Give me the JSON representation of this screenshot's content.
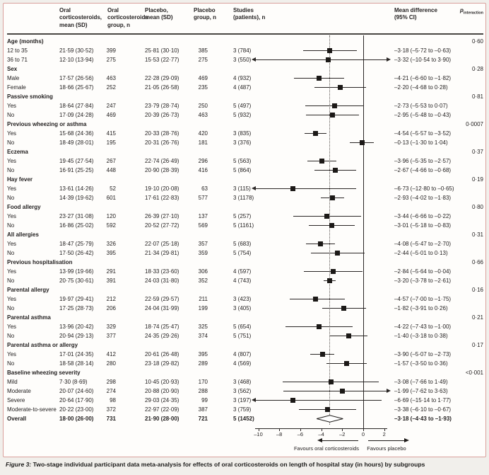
{
  "header": {
    "oral_mean": "Oral corticosteroids, mean (SD)",
    "oral_n": "Oral corticosteroids group, n",
    "placebo_mean": "Placebo, mean (SD)",
    "placebo_n": "Placebo group, n",
    "studies": "Studies (patients), n",
    "mean_difference": "Mean difference (95% CI)",
    "p_label": "p",
    "p_sub": "interaction"
  },
  "rows": [
    {
      "type": "group",
      "label": "Age (months)",
      "p": "0·60"
    },
    {
      "type": "data",
      "label": "12 to 35",
      "oral_mean": "21·59 (30·52)",
      "oral_n": "399",
      "placebo_mean": "25·81 (30·10)",
      "placebo_n": "385",
      "studies": "3 (784)",
      "md": "–3·18 (–5·72 to –0·63)"
    },
    {
      "type": "data",
      "label": "36 to 71",
      "oral_mean": "12·10 (13·94)",
      "oral_n": "275",
      "placebo_mean": "15·53 (22·77)",
      "placebo_n": "275",
      "studies": "3 (550)",
      "md": "–3·32 (–10·54 to 3·90)"
    },
    {
      "type": "group",
      "label": "Sex",
      "p": "0·28"
    },
    {
      "type": "data",
      "label": "Male",
      "oral_mean": "17·57 (26·56)",
      "oral_n": "463",
      "placebo_mean": "22·28 (29·09)",
      "placebo_n": "469",
      "studies": "4 (932)",
      "md": "–4·21 (–6·60 to –1·82)"
    },
    {
      "type": "data",
      "label": "Female",
      "oral_mean": "18·66 (25·67)",
      "oral_n": "252",
      "placebo_mean": "21·05 (26·58)",
      "placebo_n": "235",
      "studies": "4 (487)",
      "md": "–2·20 (–4·68 to 0·28)"
    },
    {
      "type": "group",
      "label": "Passive smoking",
      "p": "0·81"
    },
    {
      "type": "data",
      "label": "Yes",
      "oral_mean": "18·64 (27·84)",
      "oral_n": "247",
      "placebo_mean": "23·79 (28·74)",
      "placebo_n": "250",
      "studies": "5 (497)",
      "md": "–2·73 (–5·53 to 0·07)"
    },
    {
      "type": "data",
      "label": "No",
      "oral_mean": "17·09 (24·28)",
      "oral_n": "469",
      "placebo_mean": "20·39 (26·73)",
      "placebo_n": "463",
      "studies": "5 (932)",
      "md": "–2·95 (–5·48 to –0·43)"
    },
    {
      "type": "group",
      "label": "Previous wheezing or asthma",
      "p": "0·0007"
    },
    {
      "type": "data",
      "label": "Yes",
      "oral_mean": "15·68 (24·36)",
      "oral_n": "415",
      "placebo_mean": "20·33 (28·76)",
      "placebo_n": "420",
      "studies": "3 (835)",
      "md": "–4·54 (–5·57 to –3·52)"
    },
    {
      "type": "data",
      "label": "No",
      "oral_mean": "18·49 (28·01)",
      "oral_n": "195",
      "placebo_mean": "20·31 (26·76)",
      "placebo_n": "181",
      "studies": "3 (376)",
      "md": "–0·13 (–1·30 to 1·04)"
    },
    {
      "type": "group",
      "label": "Eczema",
      "p": "0·37"
    },
    {
      "type": "data",
      "label": "Yes",
      "oral_mean": "19·45 (27·54)",
      "oral_n": "267",
      "placebo_mean": "22·74 (26·49)",
      "placebo_n": "296",
      "studies": "5 (563)",
      "md": "–3·96 (–5·35 to –2·57)"
    },
    {
      "type": "data",
      "label": "No",
      "oral_mean": "16·91 (25·25)",
      "oral_n": "448",
      "placebo_mean": "20·90 (28·39)",
      "placebo_n": "416",
      "studies": "5 (864)",
      "md": "–2·67 (–4·66 to –0·68)"
    },
    {
      "type": "group",
      "label": "Hay fever",
      "p": "0·19"
    },
    {
      "type": "data",
      "label": "Yes",
      "oral_mean": "13·61 (14·26)",
      "oral_n": "52",
      "placebo_mean": "19·10 (20·08)",
      "placebo_n": "63",
      "studies": "3 (115)",
      "md": "–6·73 (–12·80 to –0·65)"
    },
    {
      "type": "data",
      "label": "No",
      "oral_mean": "14·39 (19·62)",
      "oral_n": "601",
      "placebo_mean": "17·61 (22·83)",
      "placebo_n": "577",
      "studies": "3 (1178)",
      "md": "–2·93 (–4·02 to –1·83)"
    },
    {
      "type": "group",
      "label": "Food allergy",
      "p": "0·80"
    },
    {
      "type": "data",
      "label": "Yes",
      "oral_mean": "23·27 (31·08)",
      "oral_n": "120",
      "placebo_mean": "26·39 (27·10)",
      "placebo_n": "137",
      "studies": "5 (257)",
      "md": "–3·44 (–6·66 to –0·22)"
    },
    {
      "type": "data",
      "label": "No",
      "oral_mean": "16·86 (25·02)",
      "oral_n": "592",
      "placebo_mean": "20·52 (27·72)",
      "placebo_n": "569",
      "studies": "5 (1161)",
      "md": "–3·01 (–5·18 to –0·83)"
    },
    {
      "type": "group",
      "label": "All allergies",
      "p": "0·31"
    },
    {
      "type": "data",
      "label": "Yes",
      "oral_mean": "18·47 (25·79)",
      "oral_n": "326",
      "placebo_mean": "22·07 (25·18)",
      "placebo_n": "357",
      "studies": "5 (683)",
      "md": "–4·08 (–5·47 to –2·70)"
    },
    {
      "type": "data",
      "label": "No",
      "oral_mean": "17·50 (26·42)",
      "oral_n": "395",
      "placebo_mean": "21·34 (29·81)",
      "placebo_n": "359",
      "studies": "5 (754)",
      "md": "–2·44 (–5·01 to 0·13)"
    },
    {
      "type": "group",
      "label": "Previous hospitalisation",
      "p": "0·66"
    },
    {
      "type": "data",
      "label": "Yes",
      "oral_mean": "13·99 (19·66)",
      "oral_n": "291",
      "placebo_mean": "18·33 (23·60)",
      "placebo_n": "306",
      "studies": "4 (597)",
      "md": "–2·84 (–5·64 to –0·04)"
    },
    {
      "type": "data",
      "label": "No",
      "oral_mean": "20·75 (30·61)",
      "oral_n": "391",
      "placebo_mean": "24·03 (31·80)",
      "placebo_n": "352",
      "studies": "4 (743)",
      "md": "–3·20 (–3·78 to –2·61)"
    },
    {
      "type": "group",
      "label": "Parental allergy",
      "p": "0·16"
    },
    {
      "type": "data",
      "label": "Yes",
      "oral_mean": "19·97 (29·41)",
      "oral_n": "212",
      "placebo_mean": "22·59 (29·57)",
      "placebo_n": "211",
      "studies": "3 (423)",
      "md": "–4·57 (–7·00 to –1·75)"
    },
    {
      "type": "data",
      "label": "No",
      "oral_mean": "17·25 (28·73)",
      "oral_n": "206",
      "placebo_mean": "24·04 (31·99)",
      "placebo_n": "199",
      "studies": "3 (405)",
      "md": "–1·82 (–3·91 to 0·26)"
    },
    {
      "type": "group",
      "label": "Parental asthma",
      "p": "0·21"
    },
    {
      "type": "data",
      "label": "Yes",
      "oral_mean": "13·96 (20·42)",
      "oral_n": "329",
      "placebo_mean": "18·74 (25·47)",
      "placebo_n": "325",
      "studies": "5 (654)",
      "md": "–4·22 (–7·43 to –1·00)"
    },
    {
      "type": "data",
      "label": "No",
      "oral_mean": "20·94 (29·13)",
      "oral_n": "377",
      "placebo_mean": "24·35 (29·26)",
      "placebo_n": "374",
      "studies": "5 (751)",
      "md": "–1·40 (–3·18 to 0·38)"
    },
    {
      "type": "group",
      "label": "Parental asthma or allergy",
      "p": "0·17"
    },
    {
      "type": "data",
      "label": "Yes",
      "oral_mean": "17·01 (24·35)",
      "oral_n": "412",
      "placebo_mean": "20·61 (26·48)",
      "placebo_n": "395",
      "studies": "4 (807)",
      "md": "–3·90 (–5·07 to –2·73)"
    },
    {
      "type": "data",
      "label": "No",
      "oral_mean": "18·58 (28·14)",
      "oral_n": "280",
      "placebo_mean": "23·18 (29·82)",
      "placebo_n": "289",
      "studies": "4 (569)",
      "md": "–1·57 (–3·50 to 0·36)"
    },
    {
      "type": "group",
      "label": "Baseline wheezing severity",
      "p": "<0·001"
    },
    {
      "type": "data",
      "label": "Mild",
      "oral_mean": "7·30 (8·69)",
      "oral_n": "298",
      "placebo_mean": "10·45 (20·93)",
      "placebo_n": "170",
      "studies": "3 (468)",
      "md": "–3·08 (–7·66 to 1·49)"
    },
    {
      "type": "data",
      "label": "Moderate",
      "oral_mean": "20·07 (24·60)",
      "oral_n": "274",
      "placebo_mean": "20·88 (20·90)",
      "placebo_n": "288",
      "studies": "3 (562)",
      "md": "–1·99 (–7·62 to 3·63)"
    },
    {
      "type": "data",
      "label": "Severe",
      "oral_mean": "20·64 (17·90)",
      "oral_n": "98",
      "placebo_mean": "29·03 (24·35)",
      "placebo_n": "99",
      "studies": "3 (197)",
      "md": "–6·69 (–15·14 to 1·77)"
    },
    {
      "type": "data",
      "label": "Moderate-to-severe",
      "oral_mean": "20·22 (23·00)",
      "oral_n": "372",
      "placebo_mean": "22·97 (22·09)",
      "placebo_n": "387",
      "studies": "3 (759)",
      "md": "–3·38 (–6·10 to –0·67)"
    },
    {
      "type": "overall",
      "label": "Overall",
      "oral_mean": "18·00 (26·00)",
      "oral_n": "731",
      "placebo_mean": "21·90 (28·00)",
      "placebo_n": "721",
      "studies": "5 (1452)",
      "md": "–3·18 (–4·43 to –1·93)"
    }
  ],
  "chart_data": {
    "type": "scatter",
    "subtype": "forest-plot",
    "title": "Two-stage individual participant data meta-analysis for effects of oral corticosteroids on length of hospital stay (in hours) by subgroups",
    "xlim": [
      -10,
      2
    ],
    "x_ticks": [
      -10,
      -8,
      -6,
      -4,
      -2,
      0,
      2
    ],
    "reference_line": 0,
    "overall_dotted_line": -3.18,
    "favours_left": "Favours oral corticosteroids",
    "favours_right": "Favours placebo",
    "points": [
      {
        "label": "12 to 35",
        "estimate": -3.18,
        "ci_low": -5.72,
        "ci_high": -0.63
      },
      {
        "label": "36 to 71",
        "estimate": -3.32,
        "ci_low": -10.54,
        "ci_high": 3.9
      },
      {
        "label": "Male",
        "estimate": -4.21,
        "ci_low": -6.6,
        "ci_high": -1.82
      },
      {
        "label": "Female",
        "estimate": -2.2,
        "ci_low": -4.68,
        "ci_high": 0.28
      },
      {
        "label": "Passive smoking Yes",
        "estimate": -2.73,
        "ci_low": -5.53,
        "ci_high": 0.07
      },
      {
        "label": "Passive smoking No",
        "estimate": -2.95,
        "ci_low": -5.48,
        "ci_high": -0.43
      },
      {
        "label": "Previous wheezing or asthma Yes",
        "estimate": -4.54,
        "ci_low": -5.57,
        "ci_high": -3.52
      },
      {
        "label": "Previous wheezing or asthma No",
        "estimate": -0.13,
        "ci_low": -1.3,
        "ci_high": 1.04
      },
      {
        "label": "Eczema Yes",
        "estimate": -3.96,
        "ci_low": -5.35,
        "ci_high": -2.57
      },
      {
        "label": "Eczema No",
        "estimate": -2.67,
        "ci_low": -4.66,
        "ci_high": -0.68
      },
      {
        "label": "Hay fever Yes",
        "estimate": -6.73,
        "ci_low": -12.8,
        "ci_high": -0.65
      },
      {
        "label": "Hay fever No",
        "estimate": -2.93,
        "ci_low": -4.02,
        "ci_high": -1.83
      },
      {
        "label": "Food allergy Yes",
        "estimate": -3.44,
        "ci_low": -6.66,
        "ci_high": -0.22
      },
      {
        "label": "Food allergy No",
        "estimate": -3.01,
        "ci_low": -5.18,
        "ci_high": -0.83
      },
      {
        "label": "All allergies Yes",
        "estimate": -4.08,
        "ci_low": -5.47,
        "ci_high": -2.7
      },
      {
        "label": "All allergies No",
        "estimate": -2.44,
        "ci_low": -5.01,
        "ci_high": 0.13
      },
      {
        "label": "Previous hospitalisation Yes",
        "estimate": -2.84,
        "ci_low": -5.64,
        "ci_high": -0.04
      },
      {
        "label": "Previous hospitalisation No",
        "estimate": -3.2,
        "ci_low": -3.78,
        "ci_high": -2.61
      },
      {
        "label": "Parental allergy Yes",
        "estimate": -4.57,
        "ci_low": -7.0,
        "ci_high": -1.75
      },
      {
        "label": "Parental allergy No",
        "estimate": -1.82,
        "ci_low": -3.91,
        "ci_high": 0.26
      },
      {
        "label": "Parental asthma Yes",
        "estimate": -4.22,
        "ci_low": -7.43,
        "ci_high": -1.0
      },
      {
        "label": "Parental asthma No",
        "estimate": -1.4,
        "ci_low": -3.18,
        "ci_high": 0.38
      },
      {
        "label": "Parental asthma or allergy Yes",
        "estimate": -3.9,
        "ci_low": -5.07,
        "ci_high": -2.73
      },
      {
        "label": "Parental asthma or allergy No",
        "estimate": -1.57,
        "ci_low": -3.5,
        "ci_high": 0.36
      },
      {
        "label": "Mild",
        "estimate": -3.08,
        "ci_low": -7.66,
        "ci_high": 1.49
      },
      {
        "label": "Moderate",
        "estimate": -1.99,
        "ci_low": -7.62,
        "ci_high": 3.63
      },
      {
        "label": "Severe",
        "estimate": -6.69,
        "ci_low": -15.14,
        "ci_high": 1.77
      },
      {
        "label": "Moderate-to-severe",
        "estimate": -3.38,
        "ci_low": -6.1,
        "ci_high": -0.67
      },
      {
        "label": "Overall",
        "estimate": -3.18,
        "ci_low": -4.43,
        "ci_high": -1.93
      }
    ]
  },
  "caption": {
    "prefix": "Figure 3:",
    "text": " Two-stage individual participant data meta-analysis for effects of oral corticosteroids on length of hospital stay (in hours) by subgroups"
  }
}
